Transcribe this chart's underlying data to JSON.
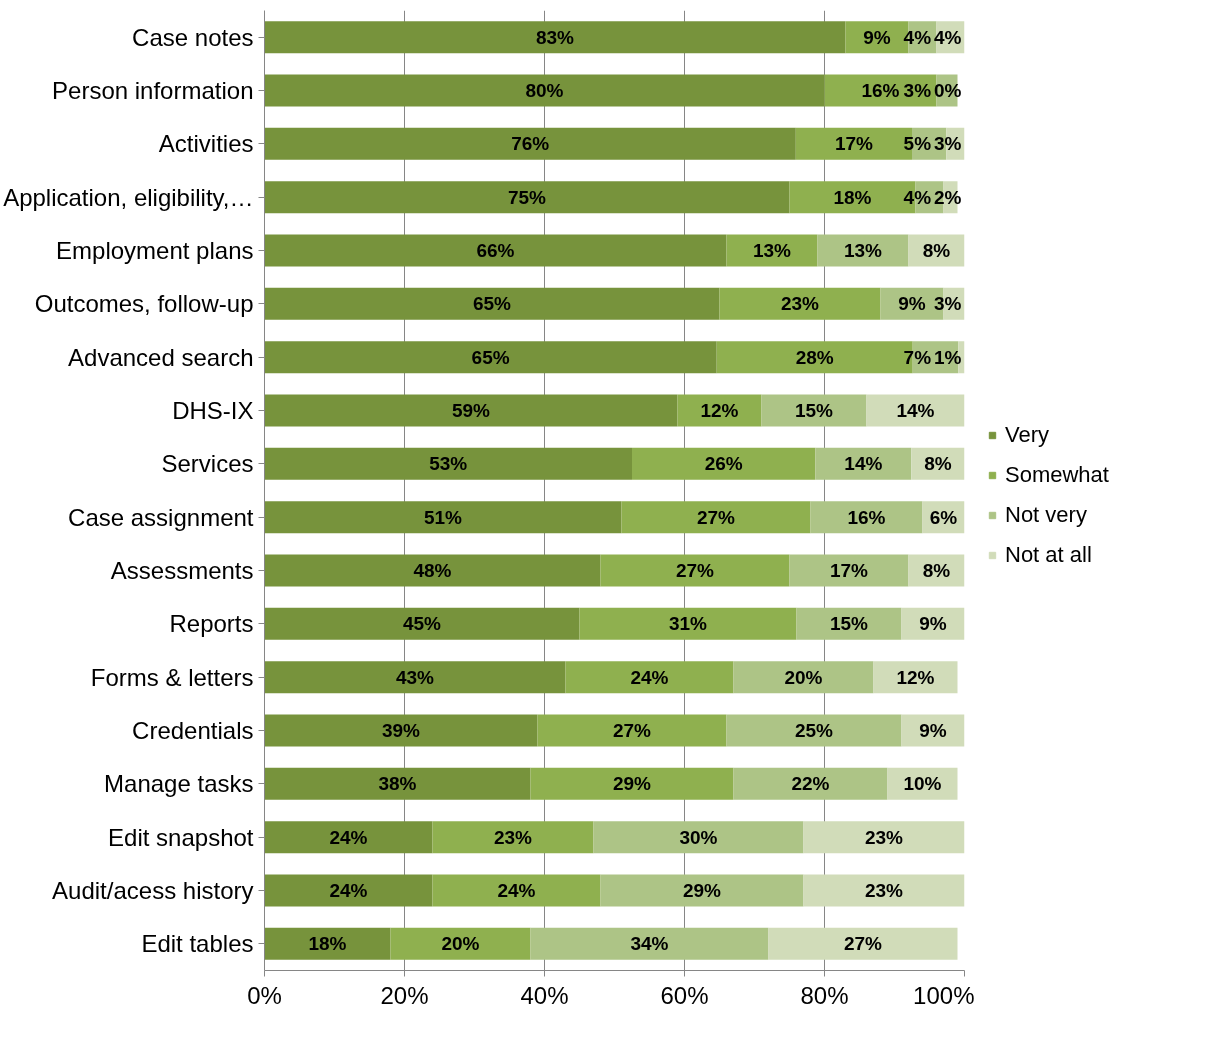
{
  "chart_data": {
    "type": "bar",
    "orientation": "horizontal",
    "stacked": true,
    "categories": [
      "Case notes",
      "Person information",
      "Activities",
      "Application, eligibility,…",
      "Employment plans",
      "Outcomes, follow-up",
      "Advanced search",
      "DHS-IX",
      "Services",
      "Case assignment",
      "Assessments",
      "Reports",
      "Forms & letters",
      "Credentials",
      "Manage tasks",
      "Edit snapshot",
      "Audit/acess history",
      "Edit tables"
    ],
    "series": [
      {
        "name": "Very",
        "color": "#77933c",
        "values": [
          83,
          80,
          75.9,
          75,
          66,
          65,
          64.6,
          59,
          52.5,
          51,
          48,
          45,
          43,
          39,
          38,
          24,
          24,
          18
        ],
        "value_labels": [
          "83%",
          "80%",
          "76%",
          "75%",
          "66%",
          "65%",
          "65%",
          "59%",
          "53%",
          "51%",
          "48%",
          "45%",
          "43%",
          "39%",
          "38%",
          "24%",
          "24%",
          "18%"
        ]
      },
      {
        "name": "Somewhat",
        "color": "#8fb04f",
        "values": [
          9,
          16,
          16.6,
          18,
          13,
          23,
          28,
          12,
          26.2,
          27,
          27,
          31,
          24,
          27,
          29,
          23,
          24,
          20
        ],
        "value_labels": [
          "9%",
          "16%",
          "17%",
          "18%",
          "13%",
          "23%",
          "28%",
          "12%",
          "26%",
          "27%",
          "27%",
          "31%",
          "24%",
          "27%",
          "29%",
          "23%",
          "24%",
          "20%"
        ]
      },
      {
        "name": "Not very",
        "color": "#adc486",
        "values": [
          4,
          3,
          4.9,
          4,
          13,
          9,
          6.5,
          15,
          13.7,
          16,
          17,
          15,
          20,
          25,
          22,
          30,
          29,
          34
        ],
        "value_labels": [
          "4%",
          "3%",
          "5%",
          "4%",
          "13%",
          "9%",
          "7%",
          "15%",
          "14%",
          "16%",
          "17%",
          "15%",
          "20%",
          "25%",
          "22%",
          "30%",
          "29%",
          "34%"
        ]
      },
      {
        "name": "Not at all",
        "color": "#d1dcb9",
        "values": [
          4,
          0,
          2.6,
          2,
          8,
          3,
          0.9,
          14,
          7.6,
          6,
          8,
          9,
          12,
          9,
          10,
          23,
          23,
          27
        ],
        "value_labels": [
          "4%",
          "0%",
          "3%",
          "2%",
          "8%",
          "3%",
          "1%",
          "14%",
          "8%",
          "6%",
          "8%",
          "9%",
          "12%",
          "9%",
          "10%",
          "23%",
          "23%",
          "27%"
        ]
      }
    ],
    "xlim": [
      0,
      100
    ],
    "xticks": [
      {
        "value": 0,
        "label": "0%"
      },
      {
        "value": 20,
        "label": "20%"
      },
      {
        "value": 40,
        "label": "40%"
      },
      {
        "value": 60,
        "label": "60%"
      },
      {
        "value": 80,
        "label": "80%"
      },
      {
        "value": 100,
        "label": "100%"
      }
    ],
    "grid": "x",
    "legend": "right"
  }
}
